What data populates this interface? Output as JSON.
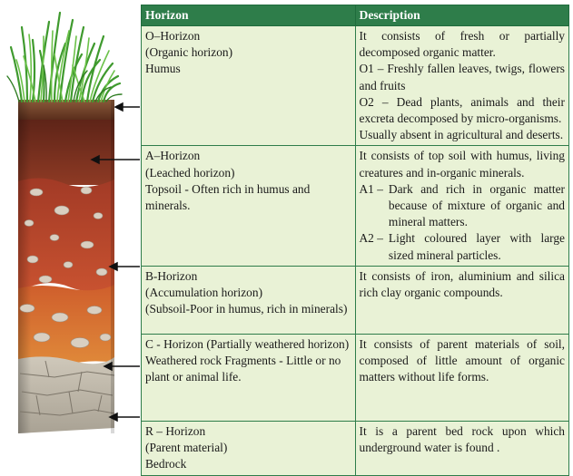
{
  "table": {
    "headers": {
      "horizon": "Horizon",
      "description": "Description"
    },
    "rows": [
      {
        "horizon": [
          "O–Horizon",
          "(Organic horizon)",
          "Humus"
        ],
        "description": {
          "intro": "It consists of fresh or partially decomposed organic matter.",
          "items": [
            "O1 – Freshly fallen leaves, twigs, flowers and fruits",
            "O2 – Dead plants, animals and their excreta decomposed by micro-organisms."
          ],
          "note": "Usually absent in agricultural and deserts."
        }
      },
      {
        "horizon": [
          "A–Horizon",
          "(Leached horizon)",
          "Topsoil - Often rich in humus and minerals."
        ],
        "description": {
          "intro": "It consists of top soil with humus, living creatures and in-organic minerals.",
          "subs": [
            {
              "code": "A1 –",
              "text": "Dark and rich in organic matter because of mixture of organic and mineral matters."
            },
            {
              "code": "A2 –",
              "text": "Light coloured layer with large sized mineral particles."
            }
          ]
        }
      },
      {
        "horizon": [
          "B-Horizon",
          "(Accumulation horizon)",
          "(Subsoil-Poor in humus, rich in minerals)"
        ],
        "description": {
          "intro": "It consists of iron, aluminium and silica rich clay organic compounds."
        }
      },
      {
        "horizon": [
          "C - Horizon (Partially weathered horizon)",
          "Weathered rock Fragments - Little or no plant or animal life."
        ],
        "description": {
          "intro": "It consists of parent materials of soil, composed of little amount of organic matters without life forms."
        }
      },
      {
        "horizon": [
          "R – Horizon",
          "(Parent material)",
          "Bedrock"
        ],
        "description": {
          "intro": "It is a parent bed rock upon which underground water is found ."
        }
      }
    ]
  },
  "figure": {
    "colors": {
      "grass": "#4caf3a",
      "o_horizon": "#6b3a22",
      "a_horizon": "#7a2e1e",
      "b_horizon": "#b2432a",
      "c_horizon": "#d56a2e",
      "r_horizon": "#b9b2a6",
      "arrow": "#111111"
    }
  }
}
